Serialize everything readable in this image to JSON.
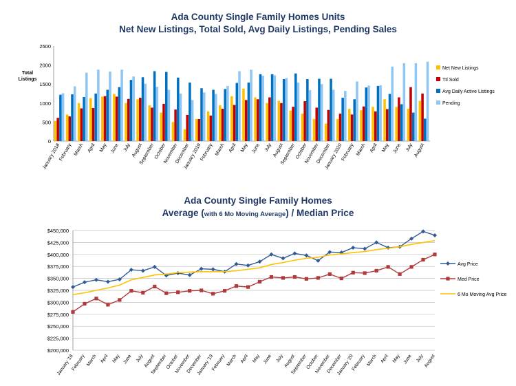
{
  "chart_data": [
    {
      "type": "bar",
      "title_line1": "Ada County Single Family Homes Units",
      "title_line2": "Net New Listings, Total Sold, Avg Daily Listings, Pending Sales",
      "ylabel": "Total Listings",
      "ylim": [
        0,
        2500
      ],
      "yticks": [
        "0",
        "500",
        "1000",
        "1500",
        "2000",
        "2500"
      ],
      "categories": [
        "January 2018",
        "February",
        "March",
        "April",
        "May",
        "June",
        "July",
        "August",
        "September",
        "October",
        "November",
        "December",
        "January 2019",
        "February",
        "March",
        "April",
        "May",
        "June",
        "July",
        "August",
        "September",
        "October",
        "November",
        "December",
        "January 2020",
        "February",
        "March",
        "April",
        "May",
        "June",
        "July",
        "August"
      ],
      "legend_position": "right",
      "series": [
        {
          "name": "Net New Listings",
          "color": "#ffc000",
          "values": [
            530,
            700,
            1000,
            1130,
            1170,
            1240,
            1000,
            1100,
            940,
            750,
            500,
            310,
            580,
            780,
            940,
            1180,
            1380,
            1150,
            1000,
            1060,
            800,
            720,
            580,
            460,
            580,
            850,
            810,
            900,
            1100,
            900,
            850,
            1060
          ]
        },
        {
          "name": "Ttl Sold",
          "color": "#c00000",
          "values": [
            610,
            650,
            860,
            870,
            1180,
            1170,
            1110,
            1140,
            880,
            980,
            830,
            690,
            580,
            670,
            850,
            950,
            1080,
            1100,
            1150,
            1000,
            900,
            1050,
            880,
            820,
            720,
            700,
            910,
            780,
            840,
            1150,
            1420,
            1250
          ]
        },
        {
          "name": "Avg Daily Active Listings",
          "color": "#0070c0",
          "values": [
            1220,
            1230,
            1160,
            1250,
            1350,
            1420,
            1610,
            1680,
            1840,
            1820,
            1670,
            1540,
            1390,
            1350,
            1370,
            1530,
            1540,
            1760,
            1760,
            1630,
            1780,
            1630,
            1640,
            1640,
            1140,
            1100,
            1410,
            1450,
            1240,
            970,
            750,
            590
          ]
        },
        {
          "name": "Pending",
          "color": "#8ec6f5",
          "values": [
            1260,
            1440,
            1800,
            1880,
            1830,
            1880,
            1700,
            1510,
            1430,
            1350,
            1250,
            1080,
            1280,
            1240,
            1450,
            1840,
            1880,
            1720,
            1730,
            1660,
            1540,
            1340,
            1500,
            1350,
            1320,
            1570,
            1460,
            1470,
            1960,
            2050,
            2050,
            2090
          ]
        }
      ]
    },
    {
      "type": "line",
      "title_line1": "Ada County Single Family Homes",
      "title_line2_a": "Average (",
      "title_line2_b": "with 6 Mo Moving Average",
      "title_line2_c": ") / Median Price",
      "ylim": [
        200000,
        450000
      ],
      "yticks": [
        "$200,000",
        "$225,000",
        "$250,000",
        "$275,000",
        "$300,000",
        "$325,000",
        "$350,000",
        "$375,000",
        "$400,000",
        "$425,000",
        "$450,000"
      ],
      "categories": [
        "January '18",
        "February",
        "March",
        "April",
        "May",
        "June",
        "July",
        "August",
        "September",
        "October",
        "November",
        "December",
        "January '19",
        "February",
        "March",
        "April",
        "May",
        "June",
        "July",
        "August",
        "September",
        "October",
        "November",
        "December",
        "January '20",
        "February",
        "March",
        "April",
        "May",
        "June",
        "July",
        "August"
      ],
      "legend_position": "right",
      "series": [
        {
          "name": "Avg Price",
          "color": "#2e5a96",
          "values": [
            332000,
            342000,
            347000,
            343000,
            348000,
            368000,
            366000,
            374000,
            356000,
            361000,
            357000,
            370000,
            369000,
            364000,
            380000,
            377000,
            385000,
            400000,
            392000,
            402000,
            398000,
            387000,
            405000,
            404000,
            414000,
            412000,
            425000,
            414000,
            416000,
            433000,
            448000,
            440000
          ]
        },
        {
          "name": "Med Price",
          "color": "#b03a3a",
          "values": [
            280000,
            297000,
            308000,
            295000,
            305000,
            324000,
            320000,
            333000,
            319000,
            321000,
            324000,
            325000,
            318000,
            324000,
            334000,
            332000,
            343000,
            353000,
            351000,
            353000,
            349000,
            351000,
            359000,
            350000,
            362000,
            361000,
            366000,
            374000,
            359000,
            374000,
            389000,
            400000
          ]
        },
        {
          "name": "6 Mo Moving Avg Price",
          "color": "#ffc000",
          "values": [
            316000,
            320000,
            325000,
            330000,
            336000,
            347000,
            352000,
            357000,
            359000,
            362000,
            363000,
            364000,
            364000,
            364000,
            366000,
            369000,
            372000,
            379000,
            383000,
            388000,
            392000,
            394000,
            399000,
            401000,
            404000,
            406000,
            410000,
            413000,
            416000,
            421000,
            425000,
            429000
          ]
        }
      ]
    }
  ]
}
